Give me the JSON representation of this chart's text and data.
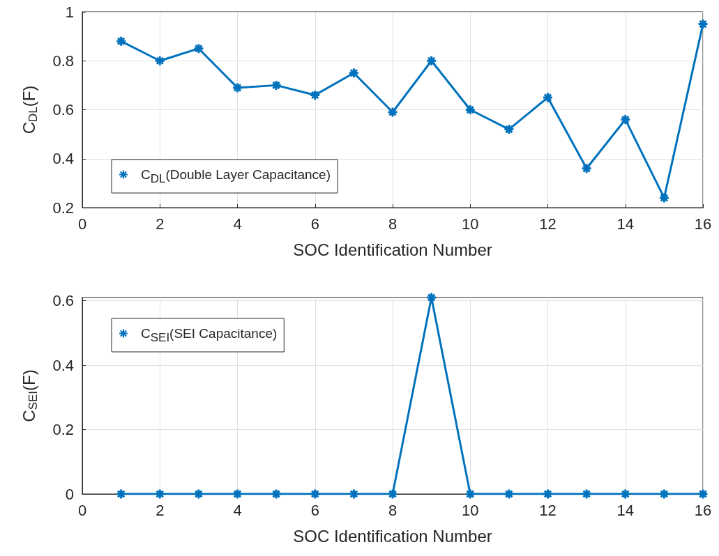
{
  "chart_data": [
    {
      "type": "line",
      "xlabel": "SOC Identification Number",
      "ylabel": "C$_{DL}$(F)",
      "x": [
        1,
        2,
        3,
        4,
        5,
        6,
        7,
        8,
        9,
        10,
        11,
        12,
        13,
        14,
        15,
        16
      ],
      "series": [
        {
          "name": "C$_{DL}$(Double Layer Capacitance)",
          "color": "#0072bd",
          "values": [
            0.88,
            0.8,
            0.85,
            0.69,
            0.7,
            0.66,
            0.75,
            0.59,
            0.8,
            0.6,
            0.52,
            0.65,
            0.36,
            0.56,
            0.24,
            0.95
          ]
        }
      ],
      "xlim": [
        0,
        16
      ],
      "xticks": [
        0,
        2,
        4,
        6,
        8,
        10,
        12,
        14,
        16
      ],
      "ylim": [
        0.2,
        1
      ],
      "yticks": [
        0.2,
        0.4,
        0.6,
        0.8,
        1
      ],
      "grid": true,
      "legend": "bottom left",
      "marker": "cross",
      "line_style": "solid"
    },
    {
      "type": "line",
      "xlabel": "SOC Identification Number",
      "ylabel": "C$_{SEI}$(F)",
      "x": [
        1,
        2,
        3,
        4,
        5,
        6,
        7,
        8,
        9,
        10,
        11,
        12,
        13,
        14,
        15,
        16
      ],
      "series": [
        {
          "name": "C$_{SEI}$(SEI Capacitance)",
          "color": "#0072bd",
          "values": [
            0,
            0,
            0,
            0,
            0,
            0,
            0,
            0,
            0.61,
            0,
            0,
            0,
            0,
            0,
            0,
            0
          ]
        }
      ],
      "xlim": [
        0,
        16
      ],
      "xticks": [
        0,
        2,
        4,
        6,
        8,
        10,
        12,
        14,
        16
      ],
      "ylim": [
        0,
        0.61
      ],
      "yticks": [
        0,
        0.2,
        0.4,
        0.6
      ],
      "grid": true,
      "legend": "top left",
      "marker": "cross",
      "line_style": "solid"
    }
  ]
}
